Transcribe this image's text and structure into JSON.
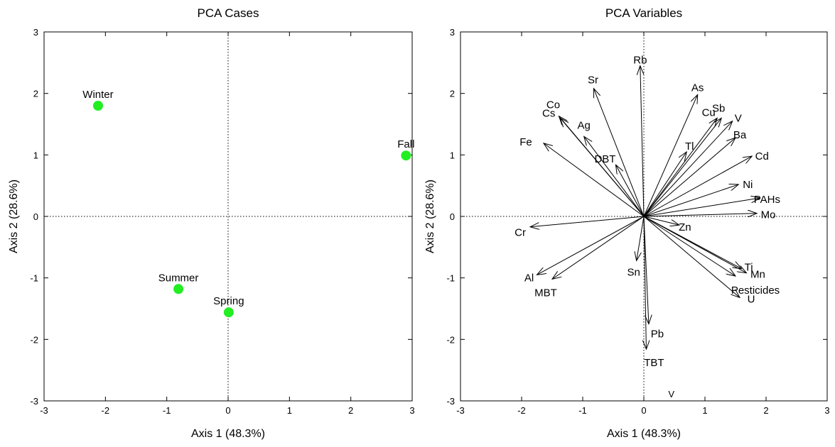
{
  "chart_data": [
    {
      "type": "scatter",
      "title": "PCA Cases",
      "xlabel": "Axis 1 (48.3%)",
      "ylabel": "Axis 2 (28.6%)",
      "xlim": [
        -3,
        3
      ],
      "ylim": [
        -3,
        3
      ],
      "xticks": [
        "-3",
        "-2",
        "-1",
        "0",
        "1",
        "2",
        "3"
      ],
      "yticks": [
        "-3",
        "-2",
        "-1",
        "0",
        "1",
        "2",
        "3"
      ],
      "grid": false,
      "reference_lines": "dotted lines at x=0 and y=0",
      "marker_color": "#22ee22",
      "points": [
        {
          "label": "Winter",
          "x": -2.12,
          "y": 1.8
        },
        {
          "label": "Fall",
          "x": 2.9,
          "y": 0.99
        },
        {
          "label": "Summer",
          "x": -0.81,
          "y": -1.18
        },
        {
          "label": "Spring",
          "x": 0.01,
          "y": -1.56
        }
      ]
    },
    {
      "type": "biplot-vectors",
      "title": "PCA Variables",
      "xlabel": "Axis 1 (48.3%)",
      "ylabel": "Axis 2 (28.6%)",
      "xlim": [
        -3,
        3
      ],
      "ylim": [
        -3,
        3
      ],
      "xticks": [
        "-3",
        "-2",
        "-1",
        "0",
        "1",
        "2",
        "3"
      ],
      "yticks": [
        "-3",
        "-2",
        "-1",
        "0",
        "1",
        "2",
        "3"
      ],
      "grid": false,
      "reference_lines": "dotted lines at x=0 and y=0",
      "stray_text": "V",
      "vectors": [
        {
          "label": "Rb",
          "x": -0.06,
          "y": 2.45
        },
        {
          "label": "Sr",
          "x": -0.82,
          "y": 2.08
        },
        {
          "label": "As",
          "x": 0.88,
          "y": 1.98
        },
        {
          "label": "Co",
          "x": -1.39,
          "y": 1.63
        },
        {
          "label": "Cs",
          "x": -1.37,
          "y": 1.6
        },
        {
          "label": "Cu",
          "x": 1.2,
          "y": 1.6
        },
        {
          "label": "Sb",
          "x": 1.27,
          "y": 1.6
        },
        {
          "label": "V",
          "x": 1.45,
          "y": 1.55
        },
        {
          "label": "Ag",
          "x": -0.98,
          "y": 1.3
        },
        {
          "label": "Fe",
          "x": -1.64,
          "y": 1.19
        },
        {
          "label": "Ba",
          "x": 1.5,
          "y": 1.28
        },
        {
          "label": "Tl",
          "x": 0.7,
          "y": 1.05
        },
        {
          "label": "Cd",
          "x": 1.77,
          "y": 0.98
        },
        {
          "label": "DBT",
          "x": -0.46,
          "y": 0.84
        },
        {
          "label": "Ni",
          "x": 1.55,
          "y": 0.52
        },
        {
          "label": "PAHs",
          "x": 1.9,
          "y": 0.3
        },
        {
          "label": "Mo",
          "x": 1.85,
          "y": 0.05
        },
        {
          "label": "Zn",
          "x": 0.58,
          "y": -0.14
        },
        {
          "label": "Cr",
          "x": -1.86,
          "y": -0.17
        },
        {
          "label": "Sn",
          "x": -0.12,
          "y": -0.72
        },
        {
          "label": "Ti",
          "x": 1.6,
          "y": -0.85
        },
        {
          "label": "Mn",
          "x": 1.68,
          "y": -0.92
        },
        {
          "label": "Pesticides",
          "x": 1.5,
          "y": -0.97
        },
        {
          "label": "Al",
          "x": -1.75,
          "y": -0.95
        },
        {
          "label": "MBT",
          "x": -1.5,
          "y": -1.02
        },
        {
          "label": "U",
          "x": 1.57,
          "y": -1.32
        },
        {
          "label": "Pb",
          "x": 0.08,
          "y": -1.75
        },
        {
          "label": "TBT",
          "x": 0.04,
          "y": -2.16
        }
      ]
    }
  ]
}
